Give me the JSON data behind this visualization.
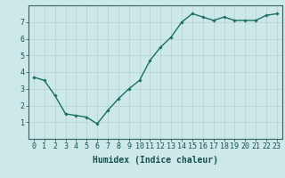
{
  "x": [
    0,
    1,
    2,
    3,
    4,
    5,
    6,
    7,
    8,
    9,
    10,
    11,
    12,
    13,
    14,
    15,
    16,
    17,
    18,
    19,
    20,
    21,
    22,
    23
  ],
  "y": [
    3.7,
    3.5,
    2.6,
    1.5,
    1.4,
    1.3,
    0.9,
    1.7,
    2.4,
    3.0,
    3.5,
    4.7,
    5.5,
    6.1,
    7.0,
    7.5,
    7.3,
    7.1,
    7.3,
    7.1,
    7.1,
    7.1,
    7.4,
    7.5
  ],
  "line_color": "#1a7060",
  "marker": "D",
  "marker_size": 1.8,
  "bg_color": "#cce8e8",
  "grid_color": "#b8d4d4",
  "axis_bg": "#cce8e8",
  "xlabel": "Humidex (Indice chaleur)",
  "ylim": [
    0,
    8
  ],
  "xlim": [
    -0.5,
    23.5
  ],
  "yticks": [
    1,
    2,
    3,
    4,
    5,
    6,
    7
  ],
  "xticks": [
    0,
    1,
    2,
    3,
    4,
    5,
    6,
    7,
    8,
    9,
    10,
    11,
    12,
    13,
    14,
    15,
    16,
    17,
    18,
    19,
    20,
    21,
    22,
    23
  ],
  "xlabel_fontsize": 7,
  "tick_fontsize": 6,
  "line_width": 1.0
}
